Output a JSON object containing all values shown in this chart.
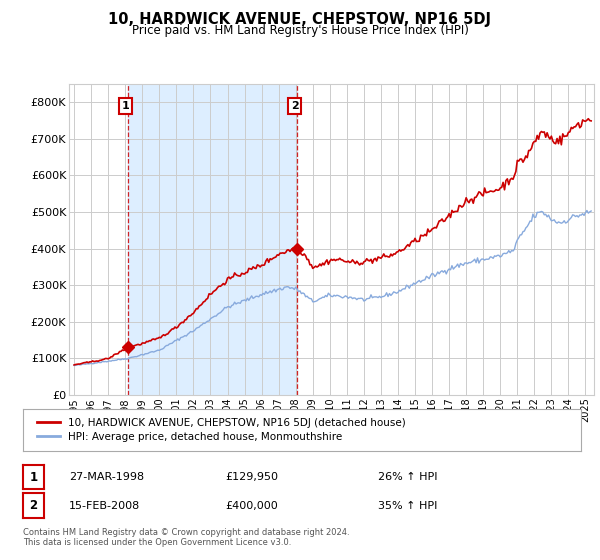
{
  "title": "10, HARDWICK AVENUE, CHEPSTOW, NP16 5DJ",
  "subtitle": "Price paid vs. HM Land Registry's House Price Index (HPI)",
  "property_label": "10, HARDWICK AVENUE, CHEPSTOW, NP16 5DJ (detached house)",
  "hpi_label": "HPI: Average price, detached house, Monmouthshire",
  "sale1_date": "27-MAR-1998",
  "sale1_price": 129950,
  "sale1_hpi": "26% ↑ HPI",
  "sale2_date": "15-FEB-2008",
  "sale2_price": 400000,
  "sale2_hpi": "35% ↑ HPI",
  "footnote": "Contains HM Land Registry data © Crown copyright and database right 2024.\nThis data is licensed under the Open Government Licence v3.0.",
  "ylim": [
    0,
    850000
  ],
  "yticks": [
    0,
    100000,
    200000,
    300000,
    400000,
    500000,
    600000,
    700000,
    800000
  ],
  "ytick_labels": [
    "£0",
    "£100K",
    "£200K",
    "£300K",
    "£400K",
    "£500K",
    "£600K",
    "£700K",
    "£800K"
  ],
  "property_color": "#cc0000",
  "hpi_color": "#88aadd",
  "vline_color": "#cc0000",
  "shade_color": "#ddeeff",
  "marker_color": "#cc0000",
  "background_color": "#ffffff",
  "grid_color": "#cccccc",
  "sale1_year": 1998.167,
  "sale2_year": 2008.083,
  "xlim_left": 1994.7,
  "xlim_right": 2025.5
}
